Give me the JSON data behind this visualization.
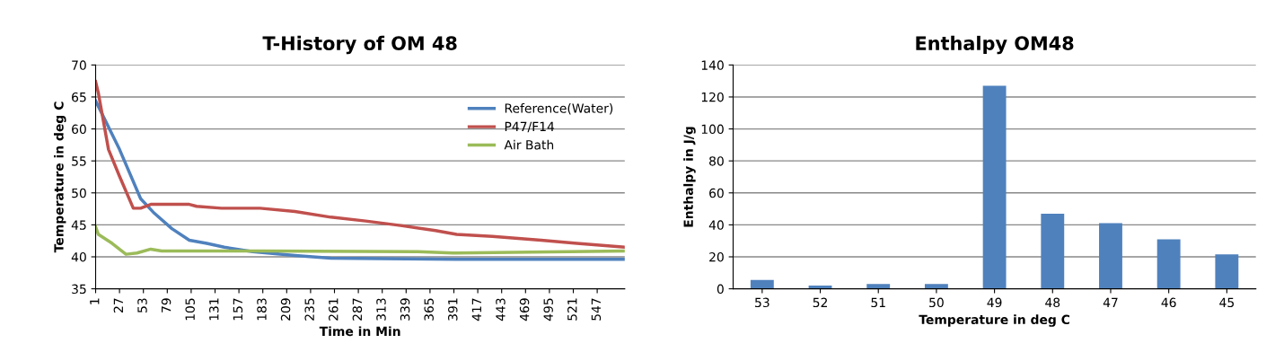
{
  "chart_data": [
    {
      "type": "line",
      "title": "T-History of OM 48",
      "xlabel": "Time in Min",
      "ylabel": "Temperature in deg C",
      "xlim": [
        1,
        577
      ],
      "xticks": [
        1,
        27,
        53,
        79,
        105,
        131,
        157,
        183,
        209,
        235,
        261,
        287,
        313,
        339,
        365,
        391,
        417,
        443,
        469,
        495,
        521,
        547
      ],
      "ylim": [
        35,
        70
      ],
      "yticks": [
        35,
        40,
        45,
        50,
        55,
        60,
        65,
        70
      ],
      "grid": "y",
      "legend": "right",
      "marker": "none",
      "line_style": "solid",
      "series": [
        {
          "name": "Reference(Water)",
          "color": "#4f81bd",
          "x": [
            1,
            27,
            50,
            65,
            84,
            103,
            122,
            141,
            172,
            218,
            257,
            394,
            577
          ],
          "values": [
            64.4,
            56.8,
            49.1,
            46.8,
            44.4,
            42.6,
            42.1,
            41.5,
            40.8,
            40.2,
            39.8,
            39.6,
            39.6
          ]
        },
        {
          "name": "P47/F14",
          "color": "#c0504d",
          "x": [
            1,
            4,
            15,
            27,
            42,
            50,
            61,
            103,
            111,
            138,
            180,
            218,
            257,
            295,
            333,
            371,
            394,
            433,
            486,
            525,
            577
          ],
          "values": [
            67.4,
            65.6,
            56.8,
            52.6,
            47.6,
            47.6,
            48.2,
            48.2,
            47.9,
            47.6,
            47.6,
            47.1,
            46.2,
            45.6,
            44.9,
            44.1,
            43.5,
            43.2,
            42.6,
            42.1,
            41.5
          ]
        },
        {
          "name": "Air Bath",
          "color": "#9bbb59",
          "x": [
            1,
            4,
            19,
            34,
            46,
            61,
            73,
            180,
            352,
            390,
            577
          ],
          "values": [
            44.7,
            43.5,
            42.1,
            40.4,
            40.6,
            41.2,
            40.9,
            40.9,
            40.8,
            40.6,
            40.9
          ]
        }
      ]
    },
    {
      "type": "bar",
      "title": "Enthalpy OM48",
      "xlabel": "Temperature in deg C",
      "ylabel": "Enthalpy in J/g",
      "categories": [
        "53",
        "52",
        "51",
        "50",
        "49",
        "48",
        "47",
        "46",
        "45"
      ],
      "values": [
        5.5,
        2,
        3,
        3,
        127,
        47,
        41,
        31,
        21.5
      ],
      "color": "#4f81bd",
      "ylim": [
        0,
        140
      ],
      "yticks": [
        0,
        20,
        40,
        60,
        80,
        100,
        120,
        140
      ],
      "grid": "y"
    }
  ]
}
